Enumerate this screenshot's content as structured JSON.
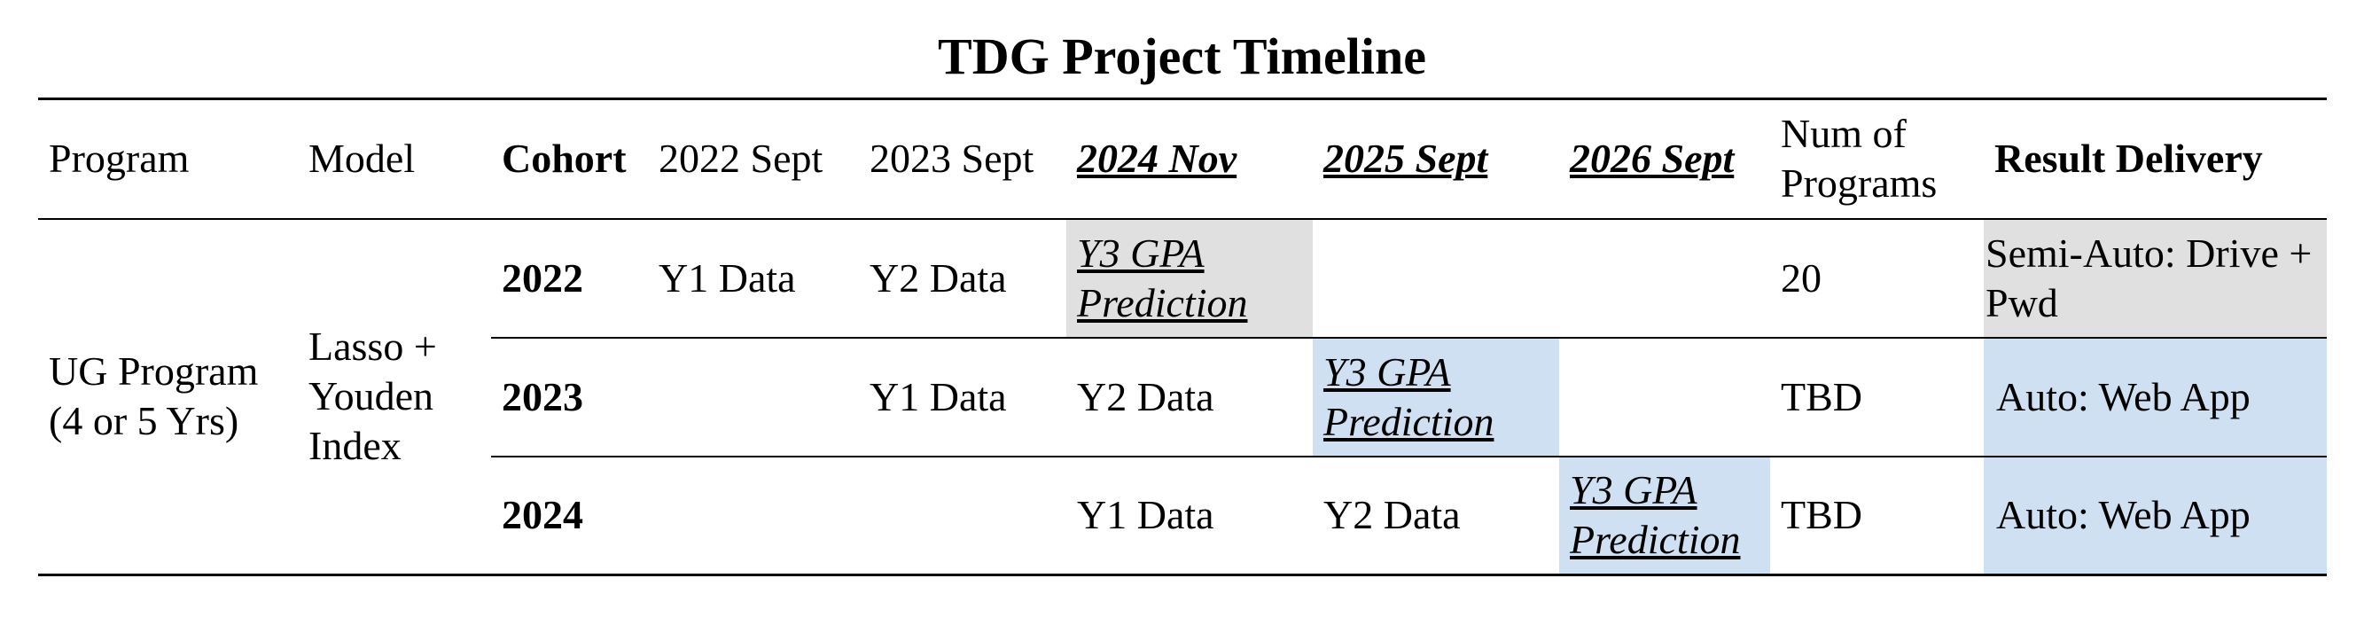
{
  "title": "TDG Project Timeline",
  "headers": {
    "program": "Program",
    "model": "Model",
    "cohort": "Cohort",
    "sept_2022": "2022 Sept",
    "sept_2023": "2023 Sept",
    "nov_2024": "2024 Nov",
    "sept_2025": "2025 Sept",
    "sept_2026": "2026 Sept",
    "num_programs": "Num of Programs",
    "result_delivery": "Result Delivery"
  },
  "program": "UG Program (4 or 5 Yrs)",
  "model": "Lasso + Youden Index",
  "rows": [
    {
      "cohort": "2022",
      "sept_2022": "Y1 Data",
      "sept_2023": "Y2 Data",
      "nov_2024": "Y3 GPA Prediction",
      "sept_2025": "",
      "sept_2026": "",
      "num_programs": "20",
      "result_delivery": "Semi-Auto: Drive + Pwd"
    },
    {
      "cohort": "2023",
      "sept_2022": "",
      "sept_2023": "Y1 Data",
      "nov_2024": "Y2 Data",
      "sept_2025": "Y3 GPA Prediction",
      "sept_2026": "",
      "num_programs": "TBD",
      "result_delivery": "Auto: Web App"
    },
    {
      "cohort": "2024",
      "sept_2022": "",
      "sept_2023": "",
      "nov_2024": "Y1 Data",
      "sept_2025": "Y2 Data",
      "sept_2026": "Y3 GPA Prediction",
      "num_programs": "TBD",
      "result_delivery": "Auto: Web App"
    }
  ],
  "colors": {
    "prediction_gray": "#e0e0e0",
    "prediction_blue": "#cfe0f2",
    "rule": "#000000"
  }
}
